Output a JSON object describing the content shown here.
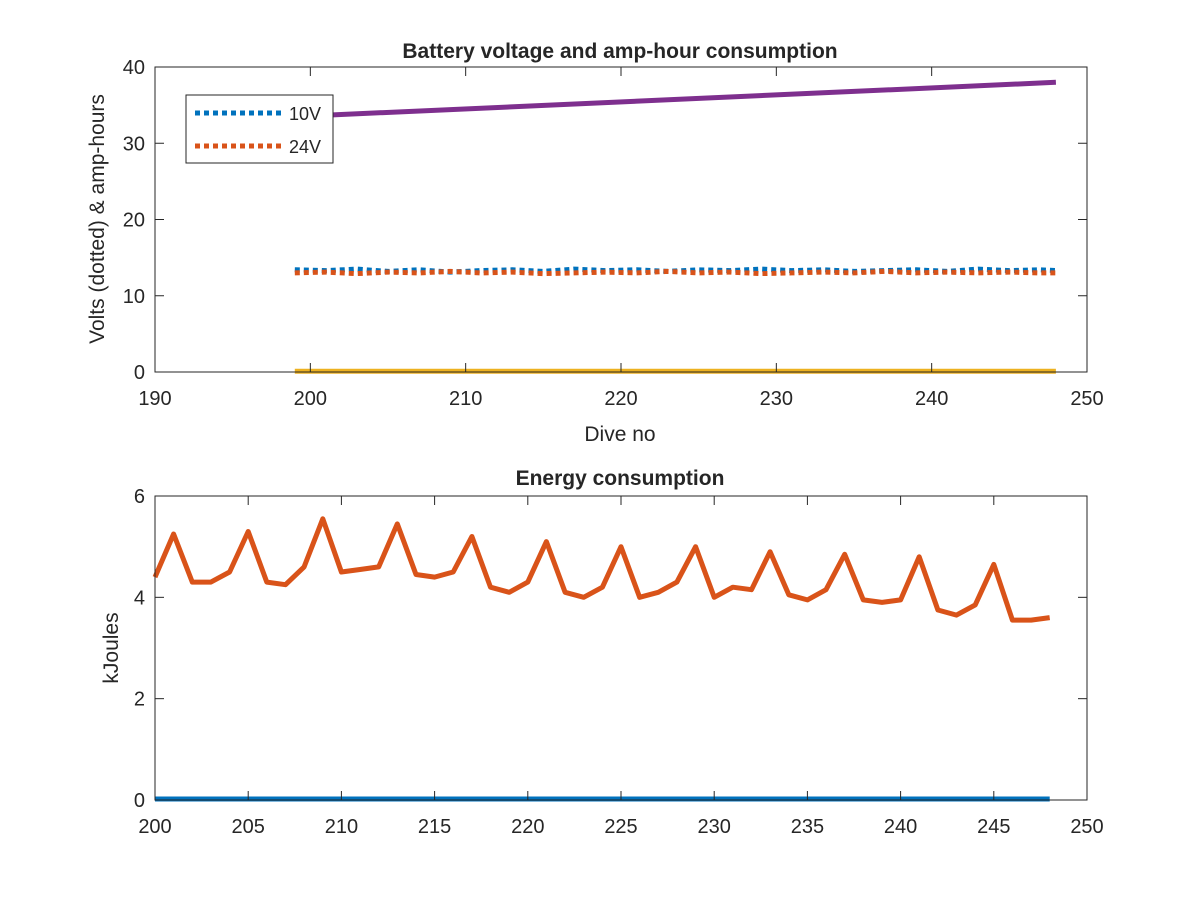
{
  "chart_data": [
    {
      "type": "line",
      "title": "Battery voltage and amp-hour consumption",
      "xlabel": "Dive no",
      "ylabel": "Volts (dotted) & amp-hours",
      "xlim": [
        190,
        250
      ],
      "ylim": [
        0,
        40
      ],
      "xticks": [
        "190",
        "200",
        "210",
        "220",
        "230",
        "240",
        "250"
      ],
      "yticks": [
        "0",
        "10",
        "20",
        "30",
        "40"
      ],
      "legend": {
        "placement": "top-left",
        "entries": [
          "10V",
          "24V"
        ]
      },
      "grid": false,
      "series": [
        {
          "name": "10V",
          "style": "dotted",
          "color": "#0072BD",
          "x": [
            199,
            201,
            203,
            205,
            207,
            209,
            211,
            213,
            215,
            217,
            219,
            221,
            223,
            225,
            227,
            229,
            231,
            233,
            235,
            237,
            239,
            241,
            243,
            245,
            247,
            248
          ],
          "y": [
            13.4,
            13.3,
            13.5,
            13.2,
            13.4,
            13.1,
            13.3,
            13.4,
            13.2,
            13.5,
            13.3,
            13.4,
            13.2,
            13.4,
            13.3,
            13.5,
            13.3,
            13.4,
            13.2,
            13.3,
            13.4,
            13.2,
            13.5,
            13.3,
            13.4,
            13.3
          ]
        },
        {
          "name": "24V",
          "style": "dotted",
          "color": "#D95319",
          "x": [
            199,
            201,
            203,
            205,
            207,
            209,
            211,
            213,
            215,
            217,
            219,
            221,
            223,
            225,
            227,
            229,
            231,
            233,
            235,
            237,
            239,
            241,
            243,
            245,
            247,
            248
          ],
          "y": [
            13.0,
            13.1,
            12.9,
            13.1,
            13.0,
            13.2,
            13.0,
            13.1,
            12.9,
            13.0,
            13.1,
            13.0,
            13.2,
            13.0,
            13.1,
            12.9,
            13.0,
            13.1,
            13.0,
            13.2,
            13.0,
            13.1,
            13.0,
            13.1,
            13.0,
            13.0
          ]
        },
        {
          "style": "solid",
          "color": "#EDB120",
          "x": [
            199,
            248
          ],
          "y": [
            0.1,
            0.1
          ]
        },
        {
          "style": "solid",
          "color": "#7E2F8E",
          "x": [
            199,
            248
          ],
          "y": [
            33.5,
            38.0
          ]
        }
      ]
    },
    {
      "type": "line",
      "title": "Energy consumption",
      "xlabel": "",
      "ylabel": "kJoules",
      "xlim": [
        200,
        250
      ],
      "ylim": [
        0,
        6
      ],
      "xticks": [
        "200",
        "205",
        "210",
        "215",
        "220",
        "225",
        "230",
        "235",
        "240",
        "245",
        "250"
      ],
      "yticks": [
        "0",
        "2",
        "4",
        "6"
      ],
      "grid": false,
      "series": [
        {
          "style": "solid",
          "color": "#0072BD",
          "x": [
            200,
            248
          ],
          "y": [
            0.02,
            0.02
          ]
        },
        {
          "style": "solid",
          "color": "#D95319",
          "x": [
            200,
            201,
            202,
            203,
            204,
            205,
            206,
            207,
            208,
            209,
            210,
            211,
            212,
            213,
            214,
            215,
            216,
            217,
            218,
            219,
            220,
            221,
            222,
            223,
            224,
            225,
            226,
            227,
            228,
            229,
            230,
            231,
            232,
            233,
            234,
            235,
            236,
            237,
            238,
            239,
            240,
            241,
            242,
            243,
            244,
            245,
            246,
            247,
            248
          ],
          "y": [
            4.4,
            5.25,
            4.3,
            4.3,
            4.5,
            5.3,
            4.3,
            4.25,
            4.6,
            5.55,
            4.5,
            4.55,
            4.6,
            5.45,
            4.45,
            4.4,
            4.5,
            5.2,
            4.2,
            4.1,
            4.3,
            5.1,
            4.1,
            4.0,
            4.2,
            5.0,
            4.0,
            4.1,
            4.3,
            5.0,
            4.0,
            4.2,
            4.15,
            4.9,
            4.05,
            3.95,
            4.15,
            4.85,
            3.95,
            3.9,
            3.95,
            4.8,
            3.75,
            3.65,
            3.85,
            4.65,
            3.55,
            3.55,
            3.6
          ]
        }
      ]
    }
  ]
}
